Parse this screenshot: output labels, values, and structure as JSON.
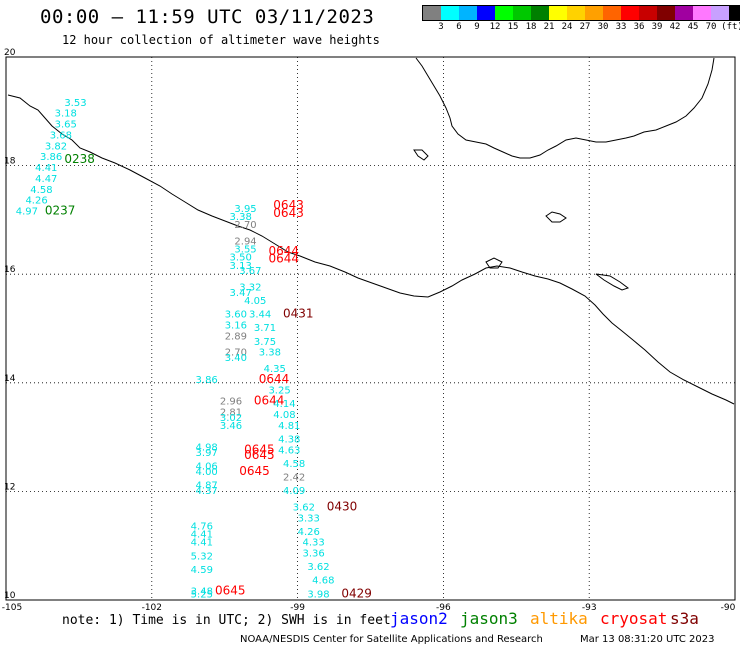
{
  "header": {
    "title": "00:00 – 11:59 UTC 03/11/2023",
    "subtitle": "12 hour collection of altimeter wave heights"
  },
  "colorbar": {
    "unit": "(ft)",
    "labels": [
      "3",
      "6",
      "9",
      "12",
      "15",
      "18",
      "21",
      "24",
      "27",
      "30",
      "33",
      "36",
      "39",
      "42",
      "45",
      "70"
    ],
    "colors": [
      "#808080",
      "#00ffff",
      "#00b4ff",
      "#0000ff",
      "#00ff00",
      "#00c800",
      "#008000",
      "#ffff00",
      "#ffd200",
      "#ffa000",
      "#ff6400",
      "#ff0000",
      "#c80000",
      "#800000",
      "#a000a0",
      "#ff78ff",
      "#c8a0ff",
      "#000000"
    ]
  },
  "axes": {
    "x_ticks": [
      "-105",
      "-102",
      "-99",
      "-96",
      "-93",
      "-90"
    ],
    "y_ticks": [
      "20",
      "18",
      "16",
      "14",
      "12",
      "10"
    ],
    "x_range": [
      -105,
      -90
    ],
    "y_range": [
      10,
      20
    ]
  },
  "colors": {
    "cyan": "#00e0e0",
    "gray": "#808080",
    "red": "#ff0000",
    "darkred": "#800000",
    "green": "#008000"
  },
  "observations": [
    {
      "lon": -103.8,
      "lat": 19.1,
      "text": "3.53",
      "color": "cyan"
    },
    {
      "lon": -104.0,
      "lat": 18.9,
      "text": "3.18",
      "color": "cyan"
    },
    {
      "lon": -104.0,
      "lat": 18.7,
      "text": "3.65",
      "color": "cyan"
    },
    {
      "lon": -104.1,
      "lat": 18.5,
      "text": "3.68",
      "color": "cyan"
    },
    {
      "lon": -104.2,
      "lat": 18.3,
      "text": "3.82",
      "color": "cyan"
    },
    {
      "lon": -104.3,
      "lat": 18.1,
      "text": "3.86",
      "color": "cyan"
    },
    {
      "lon": -104.4,
      "lat": 17.9,
      "text": "4.41",
      "color": "cyan"
    },
    {
      "lon": -104.4,
      "lat": 17.7,
      "text": "4.47",
      "color": "cyan"
    },
    {
      "lon": -104.5,
      "lat": 17.5,
      "text": "4.58",
      "color": "cyan"
    },
    {
      "lon": -104.6,
      "lat": 17.3,
      "text": "4.26",
      "color": "cyan"
    },
    {
      "lon": -104.8,
      "lat": 17.1,
      "text": "4.97",
      "color": "cyan"
    },
    {
      "lon": -103.8,
      "lat": 18.05,
      "text": "0238",
      "color": "green"
    },
    {
      "lon": -104.2,
      "lat": 17.1,
      "text": "0237",
      "color": "green"
    },
    {
      "lon": -99.5,
      "lat": 17.2,
      "text": "0643",
      "color": "red"
    },
    {
      "lon": -99.5,
      "lat": 17.05,
      "text": "0643",
      "color": "red"
    },
    {
      "lon": -100.3,
      "lat": 17.15,
      "text": "3.95",
      "color": "cyan"
    },
    {
      "lon": -100.4,
      "lat": 17.0,
      "text": "3.38",
      "color": "cyan"
    },
    {
      "lon": -100.3,
      "lat": 16.85,
      "text": "2.70",
      "color": "gray"
    },
    {
      "lon": -100.3,
      "lat": 16.55,
      "text": "2.94",
      "color": "gray"
    },
    {
      "lon": -100.3,
      "lat": 16.4,
      "text": "3.55",
      "color": "cyan"
    },
    {
      "lon": -100.4,
      "lat": 16.25,
      "text": "3.50",
      "color": "cyan"
    },
    {
      "lon": -100.4,
      "lat": 16.1,
      "text": "3.13",
      "color": "cyan"
    },
    {
      "lon": -100.2,
      "lat": 16.0,
      "text": "3.67",
      "color": "cyan"
    },
    {
      "lon": -99.6,
      "lat": 16.35,
      "text": "0644",
      "color": "red"
    },
    {
      "lon": -99.6,
      "lat": 16.22,
      "text": "0644",
      "color": "red"
    },
    {
      "lon": -100.2,
      "lat": 15.7,
      "text": "3.32",
      "color": "cyan"
    },
    {
      "lon": -100.4,
      "lat": 15.6,
      "text": "3.47",
      "color": "cyan"
    },
    {
      "lon": -100.1,
      "lat": 15.45,
      "text": "4.05",
      "color": "cyan"
    },
    {
      "lon": -100.5,
      "lat": 15.2,
      "text": "3.60",
      "color": "cyan"
    },
    {
      "lon": -100.0,
      "lat": 15.2,
      "text": "3.44",
      "color": "cyan"
    },
    {
      "lon": -100.5,
      "lat": 15.0,
      "text": "3.16",
      "color": "cyan"
    },
    {
      "lon": -99.9,
      "lat": 14.95,
      "text": "3.71",
      "color": "cyan"
    },
    {
      "lon": -99.3,
      "lat": 15.2,
      "text": "0431",
      "color": "darkred"
    },
    {
      "lon": -100.5,
      "lat": 14.8,
      "text": "2.89",
      "color": "gray"
    },
    {
      "lon": -99.9,
      "lat": 14.7,
      "text": "3.75",
      "color": "cyan"
    },
    {
      "lon": -100.5,
      "lat": 14.5,
      "text": "2.70",
      "color": "gray"
    },
    {
      "lon": -99.8,
      "lat": 14.5,
      "text": "3.38",
      "color": "cyan"
    },
    {
      "lon": -100.5,
      "lat": 14.4,
      "text": "3.40",
      "color": "cyan"
    },
    {
      "lon": -99.7,
      "lat": 14.2,
      "text": "4.35",
      "color": "cyan"
    },
    {
      "lon": -101.1,
      "lat": 14.0,
      "text": "3.86",
      "color": "cyan"
    },
    {
      "lon": -99.8,
      "lat": 14.0,
      "text": "0644",
      "color": "red"
    },
    {
      "lon": -99.6,
      "lat": 13.8,
      "text": "3.25",
      "color": "cyan"
    },
    {
      "lon": -100.6,
      "lat": 13.6,
      "text": "2.96",
      "color": "gray"
    },
    {
      "lon": -99.9,
      "lat": 13.6,
      "text": "0644",
      "color": "red"
    },
    {
      "lon": -99.5,
      "lat": 13.55,
      "text": "4.14",
      "color": "cyan"
    },
    {
      "lon": -100.6,
      "lat": 13.4,
      "text": "2.81",
      "color": "gray"
    },
    {
      "lon": -100.6,
      "lat": 13.3,
      "text": "3.02",
      "color": "cyan"
    },
    {
      "lon": -99.5,
      "lat": 13.35,
      "text": "4.08",
      "color": "cyan"
    },
    {
      "lon": -100.6,
      "lat": 13.15,
      "text": "3.46",
      "color": "cyan"
    },
    {
      "lon": -99.4,
      "lat": 13.15,
      "text": "4.81",
      "color": "cyan"
    },
    {
      "lon": -99.4,
      "lat": 12.9,
      "text": "4.38",
      "color": "cyan"
    },
    {
      "lon": -101.1,
      "lat": 12.75,
      "text": "4.98",
      "color": "cyan"
    },
    {
      "lon": -101.1,
      "lat": 12.65,
      "text": "3.97",
      "color": "cyan"
    },
    {
      "lon": -100.1,
      "lat": 12.7,
      "text": "0645",
      "color": "red"
    },
    {
      "lon": -100.1,
      "lat": 12.6,
      "text": "0645",
      "color": "red"
    },
    {
      "lon": -99.4,
      "lat": 12.7,
      "text": "4.63",
      "color": "cyan"
    },
    {
      "lon": -101.1,
      "lat": 12.4,
      "text": "4.06",
      "color": "cyan"
    },
    {
      "lon": -101.1,
      "lat": 12.3,
      "text": "4.00",
      "color": "cyan"
    },
    {
      "lon": -100.2,
      "lat": 12.3,
      "text": "0645",
      "color": "red"
    },
    {
      "lon": -99.3,
      "lat": 12.45,
      "text": "4.58",
      "color": "cyan"
    },
    {
      "lon": -99.3,
      "lat": 12.2,
      "text": "2.42",
      "color": "gray"
    },
    {
      "lon": -101.1,
      "lat": 12.05,
      "text": "4.87",
      "color": "cyan"
    },
    {
      "lon": -101.1,
      "lat": 11.95,
      "text": "4.37",
      "color": "cyan"
    },
    {
      "lon": -99.3,
      "lat": 11.95,
      "text": "4.09",
      "color": "cyan"
    },
    {
      "lon": -99.1,
      "lat": 11.65,
      "text": "3.62",
      "color": "cyan"
    },
    {
      "lon": -98.4,
      "lat": 11.65,
      "text": "0430",
      "color": "darkred"
    },
    {
      "lon": -99.0,
      "lat": 11.45,
      "text": "3.33",
      "color": "cyan"
    },
    {
      "lon": -101.2,
      "lat": 11.3,
      "text": "4.76",
      "color": "cyan"
    },
    {
      "lon": -99.0,
      "lat": 11.2,
      "text": "4.26",
      "color": "cyan"
    },
    {
      "lon": -101.2,
      "lat": 11.15,
      "text": "4.41",
      "color": "cyan"
    },
    {
      "lon": -101.2,
      "lat": 11.0,
      "text": "4.41",
      "color": "cyan"
    },
    {
      "lon": -98.9,
      "lat": 11.0,
      "text": "4.33",
      "color": "cyan"
    },
    {
      "lon": -101.2,
      "lat": 10.75,
      "text": "5.32",
      "color": "cyan"
    },
    {
      "lon": -98.9,
      "lat": 10.8,
      "text": "3.36",
      "color": "cyan"
    },
    {
      "lon": -98.8,
      "lat": 10.55,
      "text": "3.62",
      "color": "cyan"
    },
    {
      "lon": -101.2,
      "lat": 10.5,
      "text": "4.59",
      "color": "cyan"
    },
    {
      "lon": -98.7,
      "lat": 10.3,
      "text": "4.68",
      "color": "cyan"
    },
    {
      "lon": -101.2,
      "lat": 10.1,
      "text": "3.48",
      "color": "cyan"
    },
    {
      "lon": -101.2,
      "lat": 10.05,
      "text": "5.25",
      "color": "cyan"
    },
    {
      "lon": -100.7,
      "lat": 10.1,
      "text": "0645",
      "color": "red"
    },
    {
      "lon": -98.8,
      "lat": 10.05,
      "text": "3.98",
      "color": "cyan"
    },
    {
      "lon": -98.1,
      "lat": 10.05,
      "text": "0429",
      "color": "darkred"
    }
  ],
  "footer": {
    "note": "note: 1) Time is in UTC; 2) SWH is in feet",
    "satellites": [
      {
        "name": "jason2",
        "color": "#0000ff"
      },
      {
        "name": "jason3",
        "color": "#008000"
      },
      {
        "name": "altika",
        "color": "#ff9900"
      },
      {
        "name": "cryosat",
        "color": "#ff0000"
      },
      {
        "name": "s3a",
        "color": "#800000"
      }
    ],
    "credit": "NOAA/NESDIS Center for Satellite Applications and Research",
    "timestamp": "Mar 13 08:31:20 UTC 2023"
  }
}
